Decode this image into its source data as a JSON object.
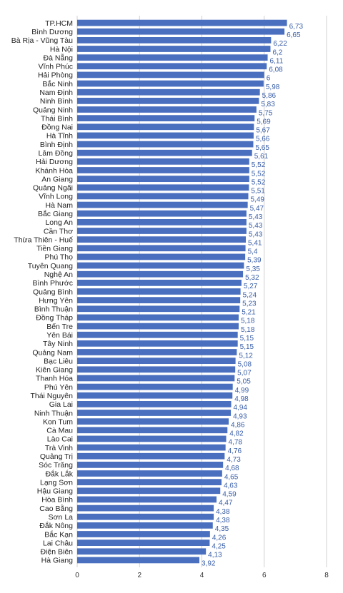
{
  "colors": {
    "bar": "#4a6fbf",
    "grid": "#d0d0d0",
    "value_label": "#3a5fa8"
  },
  "chart_data": {
    "type": "bar",
    "orientation": "horizontal",
    "categories": [
      "TP.HCM",
      "Bình Dương",
      "Bà Rịa - Vũng Tàu",
      "Hà Nội",
      "Đà Nẵng",
      "Vĩnh Phúc",
      "Hải Phòng",
      "Bắc Ninh",
      "Nam Định",
      "Ninh Bình",
      "Quảng Ninh",
      "Thái Bình",
      "Đồng Nai",
      "Hà Tĩnh",
      "Bình Định",
      "Lâm Đồng",
      "Hải Dương",
      "Khánh Hòa",
      "An Giang",
      "Quảng Ngãi",
      "Vĩnh Long",
      "Hà Nam",
      "Bắc Giang",
      "Long An",
      "Cần Thơ",
      "Thừa Thiên - Huế",
      "Tiền Giang",
      "Phú Thọ",
      "Tuyên Quang",
      "Nghệ An",
      "Bình Phước",
      "Quảng Bình",
      "Hưng Yên",
      "Bình Thuận",
      "Đồng Tháp",
      "Bến Tre",
      "Yên Bái",
      "Tây Ninh",
      "Quảng Nam",
      "Bạc Liêu",
      "Kiên Giang",
      "Thanh Hóa",
      "Phú Yên",
      "Thái Nguyên",
      "Gia Lai",
      "Ninh Thuận",
      "Kon Tum",
      "Cà Mau",
      "Lào Cai",
      "Trà Vinh",
      "Quảng Trị",
      "Sóc Trăng",
      "Đắk Lắk",
      "Lạng Sơn",
      "Hậu Giang",
      "Hòa Bình",
      "Cao Bằng",
      "Sơn La",
      "Đắk Nông",
      "Bắc Kạn",
      "Lai Châu",
      "Điện Biên",
      "Hà Giang"
    ],
    "values": [
      6.73,
      6.65,
      6.22,
      6.2,
      6.11,
      6.08,
      6,
      5.98,
      5.86,
      5.83,
      5.75,
      5.69,
      5.67,
      5.66,
      5.65,
      5.61,
      5.52,
      5.52,
      5.52,
      5.51,
      5.49,
      5.47,
      5.43,
      5.43,
      5.43,
      5.41,
      5.4,
      5.39,
      5.35,
      5.32,
      5.27,
      5.24,
      5.23,
      5.21,
      5.18,
      5.18,
      5.15,
      5.15,
      5.12,
      5.08,
      5.07,
      5.05,
      4.99,
      4.98,
      4.94,
      4.93,
      4.86,
      4.82,
      4.78,
      4.76,
      4.73,
      4.68,
      4.65,
      4.63,
      4.59,
      4.47,
      4.38,
      4.38,
      4.35,
      4.26,
      4.25,
      4.13,
      3.92
    ],
    "value_labels": [
      "6,73",
      "6,65",
      "6,22",
      "6,2",
      "6,11",
      "6,08",
      "6",
      "5,98",
      "5,86",
      "5,83",
      "5,75",
      "5,69",
      "5,67",
      "5,66",
      "5,65",
      "5,61",
      "5,52",
      "5,52",
      "5,52",
      "5,51",
      "5,49",
      "5,47",
      "5,43",
      "5,43",
      "5,43",
      "5,41",
      "5,4",
      "5,39",
      "5,35",
      "5,32",
      "5,27",
      "5,24",
      "5,23",
      "5,21",
      "5,18",
      "5,18",
      "5,15",
      "5,15",
      "5,12",
      "5,08",
      "5,07",
      "5,05",
      "4,99",
      "4,98",
      "4,94",
      "4,93",
      "4,86",
      "4,82",
      "4,78",
      "4,76",
      "4,73",
      "4,68",
      "4,65",
      "4,63",
      "4,59",
      "4,47",
      "4,38",
      "4,38",
      "4,35",
      "4,26",
      "4,25",
      "4,13",
      "3,92"
    ],
    "xlim": [
      0,
      8
    ],
    "x_ticks": [
      0,
      2,
      4,
      6,
      8
    ],
    "x_tick_labels": [
      "0",
      "2",
      "4",
      "6",
      "8"
    ],
    "title": "",
    "xlabel": "",
    "ylabel": "",
    "grid": "vertical",
    "legend": "none"
  }
}
